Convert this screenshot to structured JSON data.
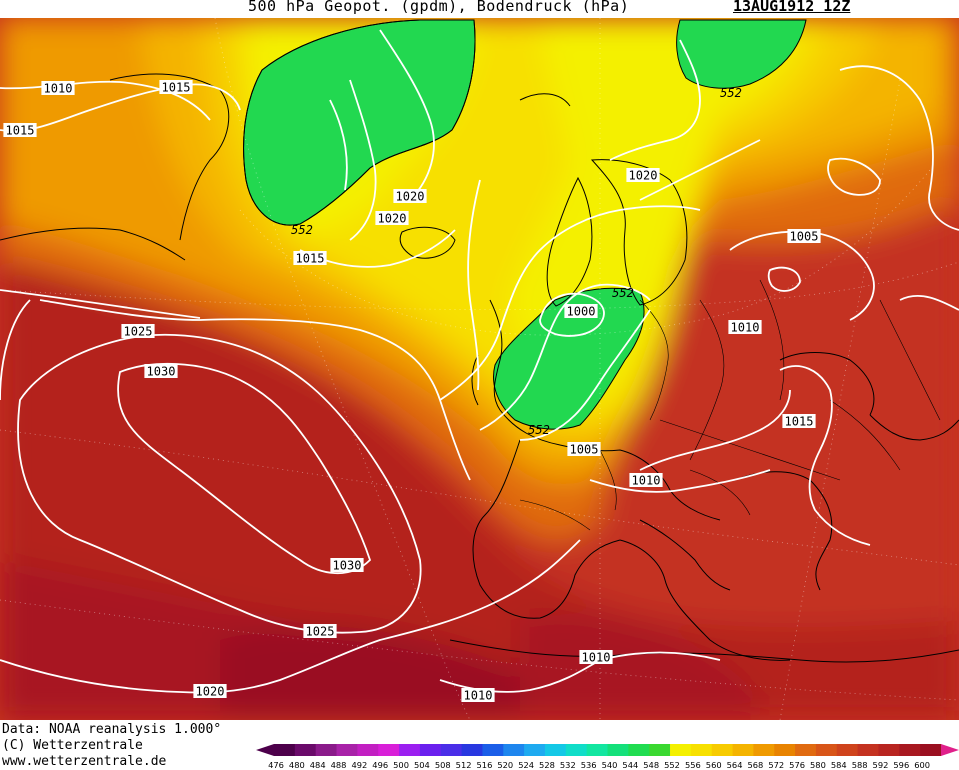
{
  "header": {
    "title": "500 hPa Geopot. (gpdm), Bodendruck (hPa)",
    "datetime": "13AUG1912 12Z"
  },
  "footer": {
    "data_source": "Data: NOAA reanalysis 1.000°",
    "copyright": "(C) Wetterzentrale",
    "website": "www.wetterzentrale.de"
  },
  "map": {
    "isobar_labels": [
      {
        "id": "iso-1010-nw",
        "text": "1010"
      },
      {
        "id": "iso-1015-w",
        "text": "1015"
      },
      {
        "id": "iso-1015-greenland-n",
        "text": "1015"
      },
      {
        "id": "iso-1020-iceland-a",
        "text": "1020"
      },
      {
        "id": "iso-1020-iceland-b",
        "text": "1020"
      },
      {
        "id": "iso-1015-iceland-s",
        "text": "1015"
      },
      {
        "id": "iso-1025-atlantic",
        "text": "1025"
      },
      {
        "id": "iso-1030-atlantic-n",
        "text": "1030"
      },
      {
        "id": "iso-1030-atlantic-s",
        "text": "1030"
      },
      {
        "id": "iso-1025-atlantic-s",
        "text": "1025"
      },
      {
        "id": "iso-1020-atlantic-s",
        "text": "1020"
      },
      {
        "id": "iso-1020-scandinavia",
        "text": "1020"
      },
      {
        "id": "iso-1005-russia",
        "text": "1005"
      },
      {
        "id": "iso-1000-baltic",
        "text": "1000"
      },
      {
        "id": "iso-1010-east",
        "text": "1010"
      },
      {
        "id": "iso-1015-balkan",
        "text": "1015"
      },
      {
        "id": "iso-1005-denmark",
        "text": "1005"
      },
      {
        "id": "iso-1010-alps",
        "text": "1010"
      },
      {
        "id": "iso-1010-italy",
        "text": "1010"
      },
      {
        "id": "iso-1010-africa",
        "text": "1010"
      }
    ],
    "geopotential_labels": [
      {
        "id": "gp-552-greenland",
        "text": "552"
      },
      {
        "id": "gp-552-arctic",
        "text": "552"
      },
      {
        "id": "gp-552-baltic",
        "text": "552"
      },
      {
        "id": "gp-552-north-sea",
        "text": "552"
      }
    ]
  },
  "legend": {
    "values": [
      "476",
      "480",
      "484",
      "488",
      "492",
      "496",
      "500",
      "504",
      "508",
      "512",
      "516",
      "520",
      "524",
      "528",
      "532",
      "536",
      "540",
      "544",
      "548",
      "552",
      "556",
      "560",
      "564",
      "568",
      "572",
      "576",
      "580",
      "584",
      "588",
      "592",
      "596",
      "600"
    ],
    "colors": [
      "#4d004b",
      "#6a0a6a",
      "#8a1a8a",
      "#a822a8",
      "#c21fc2",
      "#d81fd8",
      "#9b1ff0",
      "#6a20ee",
      "#4a2ee8",
      "#2838e0",
      "#1b5ee8",
      "#1e86ee",
      "#1eaaf0",
      "#14c8e6",
      "#10ddc8",
      "#12e6a0",
      "#14e07a",
      "#20dc50",
      "#3ad830",
      "#f4f000",
      "#f7e000",
      "#f7cb00",
      "#f4b400",
      "#ef9a00",
      "#e88300",
      "#e06a10",
      "#d85518",
      "#cf431c",
      "#c43220",
      "#b82520",
      "#a81820",
      "#9a0f20"
    ],
    "left_arrow_color": "#4d004b",
    "right_arrow_color": "#e0208a"
  }
}
